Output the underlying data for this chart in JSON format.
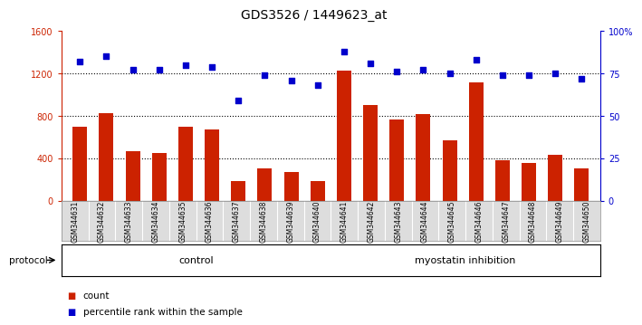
{
  "title": "GDS3526 / 1449623_at",
  "categories": [
    "GSM344631",
    "GSM344632",
    "GSM344633",
    "GSM344634",
    "GSM344635",
    "GSM344636",
    "GSM344637",
    "GSM344638",
    "GSM344639",
    "GSM344640",
    "GSM344641",
    "GSM344642",
    "GSM344643",
    "GSM344644",
    "GSM344645",
    "GSM344646",
    "GSM344647",
    "GSM344648",
    "GSM344649",
    "GSM344650"
  ],
  "bar_values": [
    700,
    830,
    470,
    450,
    700,
    670,
    190,
    310,
    270,
    185,
    1230,
    900,
    770,
    820,
    570,
    1120,
    380,
    360,
    430,
    310
  ],
  "percentile_values": [
    82,
    85,
    77,
    77,
    80,
    79,
    59,
    74,
    71,
    68,
    88,
    81,
    76,
    77,
    75,
    83,
    74,
    74,
    75,
    72
  ],
  "bar_color": "#cc2200",
  "dot_color": "#0000cc",
  "control_count": 10,
  "myostatin_count": 10,
  "control_color": "#ccffcc",
  "myostatin_color": "#44cc44",
  "control_label": "control",
  "myostatin_label": "myostatin inhibition",
  "protocol_label": "protocol",
  "ylim_left": [
    0,
    1600
  ],
  "ylim_right": [
    0,
    100
  ],
  "yticks_left": [
    0,
    400,
    800,
    1200,
    1600
  ],
  "yticks_right": [
    0,
    25,
    50,
    75,
    100
  ],
  "ytick_labels_right": [
    "0",
    "25",
    "50",
    "75",
    "100%"
  ],
  "gridline_values": [
    400,
    800,
    1200
  ],
  "legend_count": "count",
  "legend_percentile": "percentile rank within the sample",
  "background_color": "#ffffff",
  "title_fontsize": 10,
  "tick_fontsize": 7,
  "label_fontsize": 8
}
